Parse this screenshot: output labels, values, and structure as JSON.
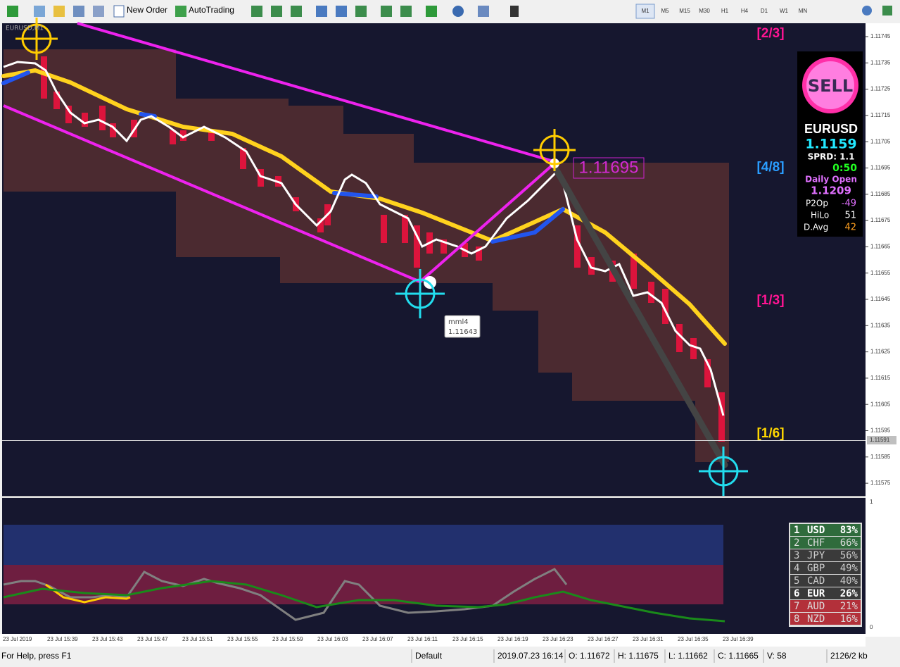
{
  "toolbar": {
    "buttons": [
      "New Order",
      "AutoTrading"
    ],
    "timeframes": [
      "M1",
      "M5",
      "M15",
      "M30",
      "H1",
      "H4",
      "D1",
      "W1",
      "MN"
    ]
  },
  "chart": {
    "symbol_label": "EURUSD,M1",
    "price_axis": [
      "1.11745",
      "1.11735",
      "1.11725",
      "1.11715",
      "1.11705",
      "1.11695",
      "1.11685",
      "1.11675",
      "1.11665",
      "1.11655",
      "1.11645",
      "1.11635",
      "1.11625",
      "1.11615",
      "1.11605",
      "1.11595",
      "1.11585",
      "1.11575"
    ],
    "current_price": "1.11591",
    "time_axis": [
      "23 Jul 2019",
      "23 Jul 15:39",
      "23 Jul 15:43",
      "23 Jul 15:47",
      "23 Jul 15:51",
      "23 Jul 15:55",
      "23 Jul 15:59",
      "23 Jul 16:03",
      "23 Jul 16:07",
      "23 Jul 16:11",
      "23 Jul 16:15",
      "23 Jul 16:19",
      "23 Jul 16:23",
      "23 Jul 16:27",
      "23 Jul 16:31",
      "23 Jul 16:35",
      "23 Jul 16:39"
    ],
    "levels": [
      "[2/3]",
      "[4/8]",
      "[1/3]",
      "[1/6]"
    ],
    "price_tag": "1.11695",
    "tooltip": {
      "name": "mml4",
      "value": "1.11643"
    }
  },
  "panel": {
    "signal": "SELL",
    "symbol": "EURUSD",
    "price": "1.1159",
    "spread": "SPRD: 1.1",
    "timer": "0:50",
    "daily_open_label": "Daily Open",
    "daily_open": "1.1209",
    "stats": [
      [
        "P2Op",
        "-49"
      ],
      [
        "HiLo",
        "51"
      ],
      [
        "D.Avg",
        "42"
      ]
    ]
  },
  "strength": {
    "rows": [
      [
        "1",
        "USD",
        "83%"
      ],
      [
        "2",
        "CHF",
        "66%"
      ],
      [
        "3",
        "JPY",
        "56%"
      ],
      [
        "4",
        "GBP",
        "49%"
      ],
      [
        "5",
        "CAD",
        "40%"
      ],
      [
        "6",
        "EUR",
        "26%"
      ],
      [
        "7",
        "AUD",
        "21%"
      ],
      [
        "8",
        "NZD",
        "16%"
      ]
    ]
  },
  "indicator_axis": [
    "1",
    "0"
  ],
  "status_bar": [
    "For Help, press F1",
    "Default",
    "2019.07.23 16:14",
    "O: 1.11672",
    "H: 1.11675",
    "L: 1.11662",
    "C: 1.11665",
    "V: 58",
    "2126/2 kb"
  ]
}
